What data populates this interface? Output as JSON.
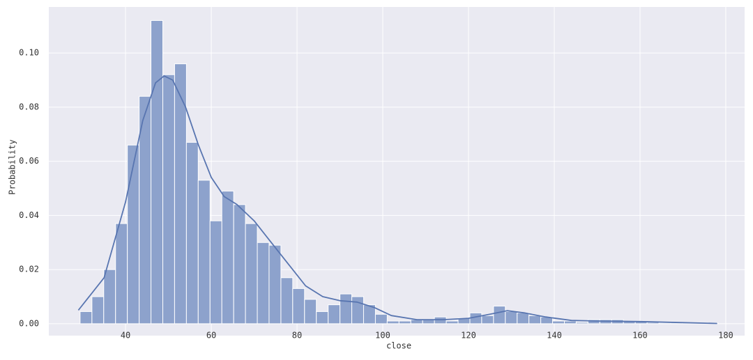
{
  "chart_data": {
    "type": "histogram",
    "xlabel": "close",
    "ylabel": "Probability",
    "bins": [
      29.4,
      32.16,
      34.91,
      37.67,
      40.42,
      43.18,
      45.93,
      48.69,
      51.44,
      54.2,
      56.95,
      59.71,
      62.46,
      65.22,
      67.97,
      70.73,
      73.48,
      76.24,
      78.99,
      81.75,
      84.5,
      87.26,
      90.01,
      92.77,
      95.52,
      98.28,
      101.03,
      103.79,
      106.54,
      109.3,
      112.05,
      114.81,
      117.56,
      120.32,
      123.07,
      125.83,
      128.58,
      131.34,
      134.09,
      136.85,
      139.6,
      142.36,
      145.11,
      147.87,
      150.62,
      153.38,
      156.13,
      158.89,
      161.64,
      164.4,
      167.15,
      169.91,
      172.66,
      175.42,
      178.17
    ],
    "values": [
      0.0045,
      0.01,
      0.02,
      0.037,
      0.066,
      0.084,
      0.112,
      0.092,
      0.096,
      0.067,
      0.053,
      0.038,
      0.049,
      0.044,
      0.037,
      0.03,
      0.029,
      0.017,
      0.013,
      0.009,
      0.0045,
      0.007,
      0.011,
      0.01,
      0.007,
      0.0035,
      0.001,
      0.001,
      0.0015,
      0.0015,
      0.0025,
      0.001,
      0.002,
      0.004,
      0.003,
      0.0065,
      0.0045,
      0.004,
      0.003,
      0.0025,
      0.001,
      0.001,
      0.0005,
      0.0015,
      0.0015,
      0.0015,
      0.0008,
      0.0008,
      0.0005,
      0.0003,
      0.0003,
      0.0003,
      0.0003,
      0.0003
    ],
    "color": "#8da2cc",
    "kde": {
      "color": "#5875b0",
      "x": [
        29,
        35,
        40,
        44,
        47,
        49,
        51,
        54,
        57,
        60,
        63,
        66,
        70,
        74,
        78,
        82,
        86,
        90,
        94,
        98,
        102,
        108,
        114,
        120,
        125,
        129,
        133,
        138,
        144,
        150,
        160,
        170,
        178
      ],
      "values": [
        0.005,
        0.017,
        0.045,
        0.075,
        0.089,
        0.0915,
        0.09,
        0.08,
        0.066,
        0.054,
        0.047,
        0.044,
        0.038,
        0.03,
        0.022,
        0.014,
        0.01,
        0.0085,
        0.008,
        0.006,
        0.003,
        0.0015,
        0.0015,
        0.002,
        0.0035,
        0.0048,
        0.004,
        0.0025,
        0.0012,
        0.001,
        0.0008,
        0.0004,
        0.0001
      ]
    },
    "xlim": [
      22.1,
      184.4
    ],
    "ylim": [
      -0.0044,
      0.117
    ],
    "xticks": [
      40,
      60,
      80,
      100,
      120,
      140,
      160,
      180
    ],
    "yticks": [
      {
        "value": 0,
        "label": "0.00"
      },
      {
        "value": 0.02,
        "label": "0.02"
      },
      {
        "value": 0.04,
        "label": "0.04"
      },
      {
        "value": 0.06,
        "label": "0.06"
      },
      {
        "value": 0.08,
        "label": "0.08"
      },
      {
        "value": 0.1,
        "label": "0.10"
      }
    ],
    "grid": true
  }
}
